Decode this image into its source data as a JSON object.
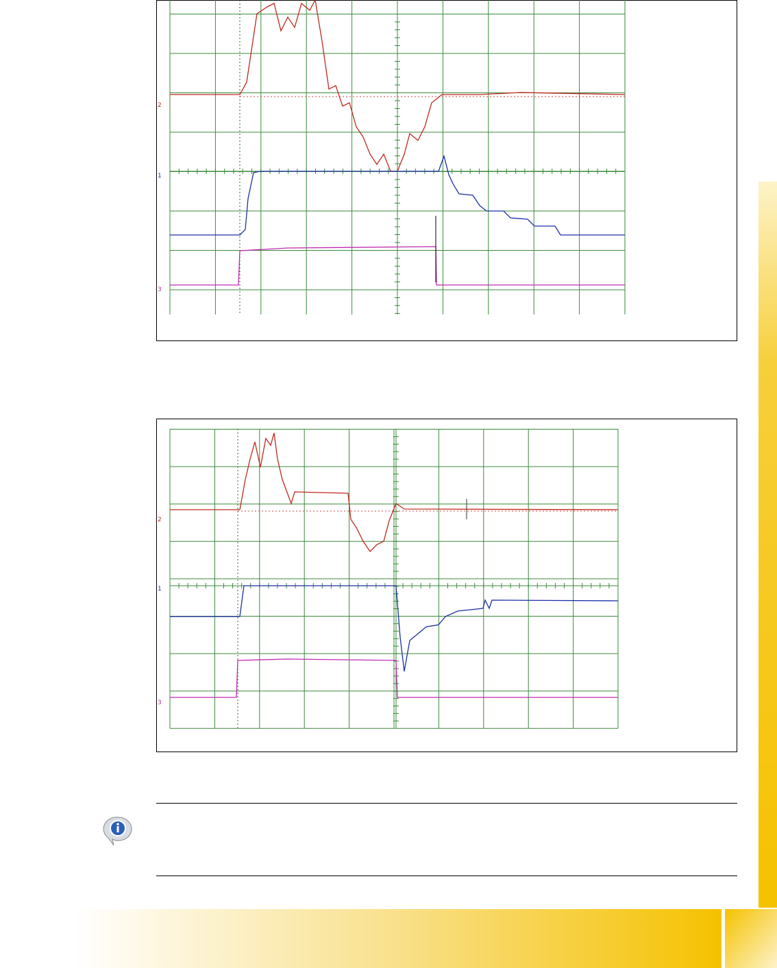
{
  "scope_1": {
    "channels": [
      "2",
      "1",
      "3"
    ]
  },
  "scope_2": {
    "channels": [
      "2",
      "1",
      "3"
    ]
  }
}
